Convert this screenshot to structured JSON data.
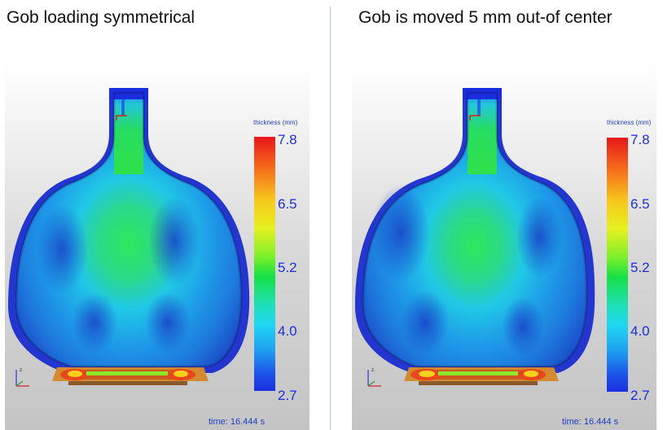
{
  "panels": [
    {
      "title": "Gob loading symmetrical",
      "legend_title": "thickness (mm)",
      "ticks": [
        "7.8",
        "6.5",
        "5.2",
        "4.0",
        "2.7"
      ],
      "time_text": "time: 16.444 s"
    },
    {
      "title": "Gob is moved 5 mm out-of center",
      "legend_title": "thickness (mm)",
      "ticks": [
        "7.8",
        "6.5",
        "5.2",
        "4.0",
        "2.7"
      ],
      "time_text": "time: 16.444 s"
    }
  ],
  "colorscale": {
    "min": 2.7,
    "max": 7.8,
    "colors": [
      "#1a2ee0",
      "#1fd6f2",
      "#16e047",
      "#e6f020",
      "#e8161b"
    ]
  }
}
